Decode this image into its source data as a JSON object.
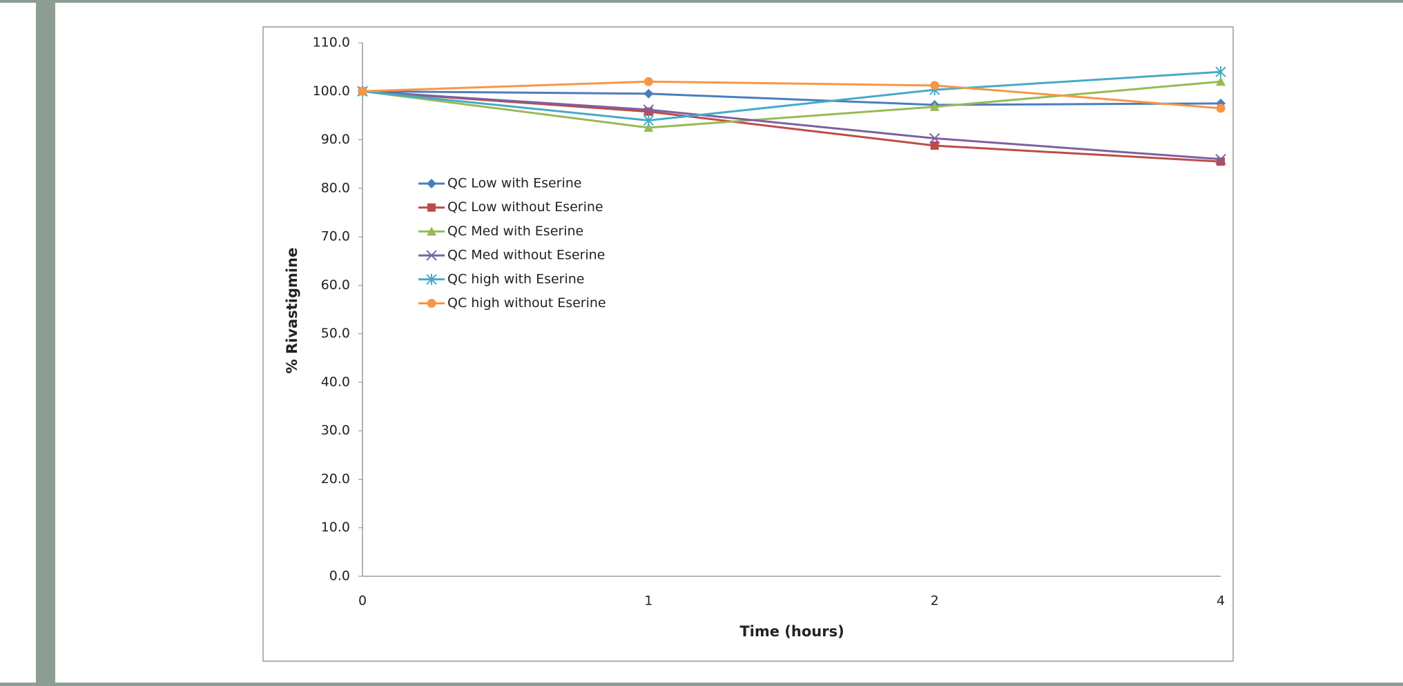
{
  "chart_data": {
    "type": "line",
    "x_label": "Time (hours)",
    "y_label": "% Rivastigmine",
    "categories": [
      "0",
      "1",
      "2",
      "4"
    ],
    "series": [
      {
        "name": "QC Low with Eserine",
        "color": "#4a7ebb",
        "marker": "diamond",
        "values": [
          100,
          99.5,
          97.2,
          97.5
        ]
      },
      {
        "name": "QC Low without Eserine",
        "color": "#be4b48",
        "marker": "square",
        "values": [
          100,
          95.8,
          88.8,
          85.5
        ]
      },
      {
        "name": "QC Med with Eserine",
        "color": "#98b954",
        "marker": "triangle",
        "values": [
          100,
          92.5,
          96.8,
          102
        ]
      },
      {
        "name": "QC Med without Eserine",
        "color": "#7d60a0",
        "marker": "x",
        "values": [
          100,
          96.2,
          90.3,
          86
        ]
      },
      {
        "name": "QC high with Eserine",
        "color": "#46aac5",
        "marker": "star",
        "values": [
          100,
          94,
          100.3,
          104
        ]
      },
      {
        "name": "QC high without Eserine",
        "color": "#f79646",
        "marker": "circle",
        "values": [
          100,
          102,
          101.2,
          96.5
        ]
      }
    ],
    "ylim": [
      0,
      110
    ],
    "yticks": [
      {
        "value": 0,
        "label": "0.0"
      },
      {
        "value": 10,
        "label": "10.0"
      },
      {
        "value": 20,
        "label": "20.0"
      },
      {
        "value": 30,
        "label": "30.0"
      },
      {
        "value": 40,
        "label": "40.0"
      },
      {
        "value": 50,
        "label": "50.0"
      },
      {
        "value": 60,
        "label": "60.0"
      },
      {
        "value": 70,
        "label": "70.0"
      },
      {
        "value": 80,
        "label": "80.0"
      },
      {
        "value": 90,
        "label": "90.0"
      },
      {
        "value": 100,
        "label": "100.0"
      },
      {
        "value": 110,
        "label": "110.0"
      }
    ],
    "grid": false,
    "legend": "upper left"
  }
}
